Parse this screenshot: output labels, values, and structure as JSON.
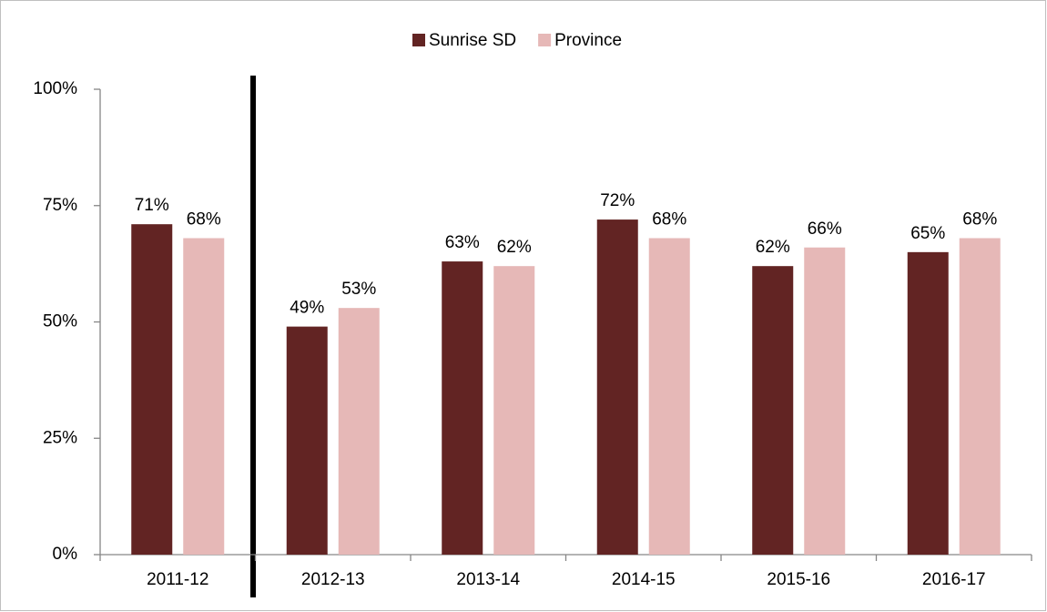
{
  "chart_data": {
    "type": "bar",
    "categories": [
      "2011-12",
      "2012-13",
      "2013-14",
      "2014-15",
      "2015-16",
      "2016-17"
    ],
    "series": [
      {
        "name": "Sunrise SD",
        "color": "#622423",
        "values": [
          71,
          49,
          63,
          72,
          62,
          65
        ],
        "value_labels": [
          "71%",
          "49%",
          "63%",
          "72%",
          "62%",
          "65%"
        ]
      },
      {
        "name": "Province",
        "color": "#e6b8b7",
        "values": [
          68,
          53,
          62,
          68,
          66,
          68
        ],
        "value_labels": [
          "68%",
          "53%",
          "62%",
          "68%",
          "66%",
          "68%"
        ]
      }
    ],
    "ylim": [
      0,
      100
    ],
    "yticks": [
      {
        "value": 0,
        "label": "0%"
      },
      {
        "value": 25,
        "label": "25%"
      },
      {
        "value": 50,
        "label": "50%"
      },
      {
        "value": 75,
        "label": "75%"
      },
      {
        "value": 100,
        "label": "100%"
      }
    ],
    "grid": false,
    "legend": "top"
  }
}
